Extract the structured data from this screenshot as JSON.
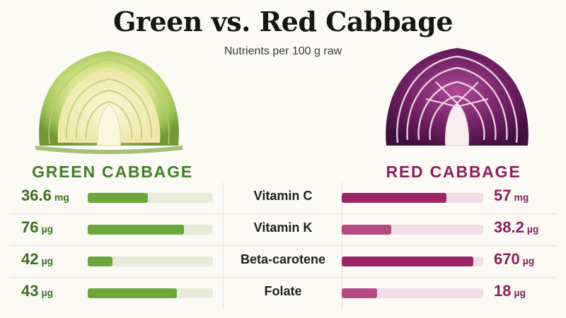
{
  "title": "Green vs. Red Cabbage",
  "subtitle": "Nutrients per 100 g raw",
  "colors": {
    "green": "#3f7f2a",
    "green_bar": "#6aa83a",
    "red": "#8c1f5c",
    "red_bar": "#9b2466"
  },
  "columns": {
    "green": "GREEN CABBAGE",
    "red": "RED CABBAGE"
  },
  "chart_data": {
    "type": "bar",
    "categories": [
      "Vitamin C",
      "Vitamin K",
      "Beta-carotene",
      "Folate"
    ],
    "series": [
      {
        "name": "GREEN CABBAGE",
        "values": [
          36.6,
          76,
          42,
          43
        ],
        "units": [
          "mg",
          "µg",
          "µg",
          "µg"
        ],
        "fill_fraction": [
          0.48,
          0.77,
          0.2,
          0.71
        ]
      },
      {
        "name": "RED CABBAGE",
        "values": [
          57,
          38.2,
          670,
          18
        ],
        "units": [
          "mg",
          "µg",
          "µg",
          "µg"
        ],
        "fill_fraction": [
          0.74,
          0.35,
          0.93,
          0.25
        ]
      }
    ]
  },
  "rows": [
    {
      "nutrient": "Vitamin C",
      "green_num": "36.6",
      "green_unit": "mg",
      "red_num": "57",
      "red_unit": "mg"
    },
    {
      "nutrient": "Vitamin K",
      "green_num": "76",
      "green_unit": "µg",
      "red_num": "38.2",
      "red_unit": "µg"
    },
    {
      "nutrient": "Beta-carotene",
      "green_num": "42",
      "green_unit": "µg",
      "red_num": "670",
      "red_unit": "µg"
    },
    {
      "nutrient": "Folate",
      "green_num": "43",
      "green_unit": "µg",
      "red_num": "18",
      "red_unit": "µg"
    }
  ]
}
